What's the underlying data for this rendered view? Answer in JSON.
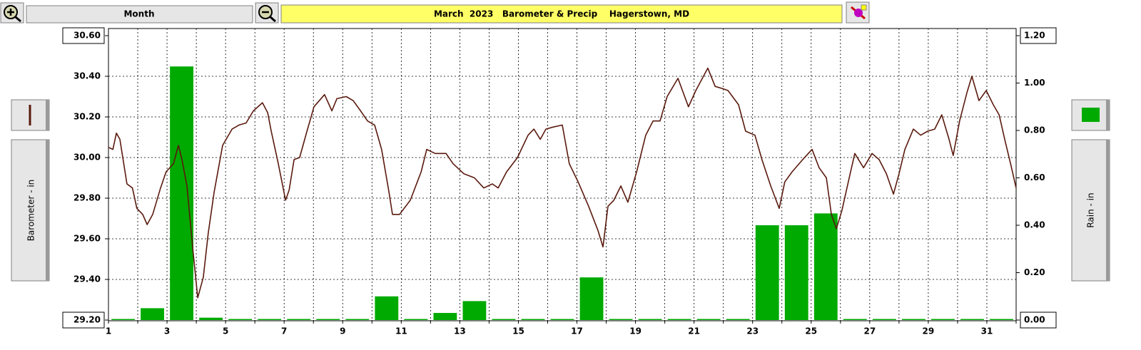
{
  "toolbar": {
    "period": "Month"
  },
  "chart_data": {
    "type": "combo",
    "title": "March  2023   Barometer & Precip    Hagerstown, MD",
    "ylabel": "Barometer - in",
    "y2label": "Rain - in",
    "xlim": [
      1,
      32
    ],
    "xticks": [
      1,
      3,
      5,
      7,
      9,
      11,
      13,
      15,
      17,
      19,
      21,
      23,
      25,
      27,
      29,
      31
    ],
    "xminor_ticks": [
      2,
      4,
      6,
      8,
      10,
      12,
      14,
      16,
      18,
      20,
      22,
      24,
      26,
      28,
      30,
      32
    ],
    "ylim": [
      29.2,
      30.6
    ],
    "yticks": [
      {
        "value": 29.2,
        "label": "29.20"
      },
      {
        "value": 29.4,
        "label": "29.40"
      },
      {
        "value": 29.6,
        "label": "29.60"
      },
      {
        "value": 29.8,
        "label": "29.80"
      },
      {
        "value": 30.0,
        "label": "30.00"
      },
      {
        "value": 30.2,
        "label": "30.20"
      },
      {
        "value": 30.4,
        "label": "30.40"
      },
      {
        "value": 30.6,
        "label": "30.60"
      }
    ],
    "y2lim": [
      0,
      1.2
    ],
    "y2ticks": [
      {
        "value": 0,
        "label": "0.00"
      },
      {
        "value": 0.2,
        "label": "0.20"
      },
      {
        "value": 0.4,
        "label": "0.40"
      },
      {
        "value": 0.6,
        "label": "0.60"
      },
      {
        "value": 0.8,
        "label": "0.80"
      },
      {
        "value": 1.0,
        "label": "1.00"
      },
      {
        "value": 1.2,
        "label": "1.20"
      }
    ],
    "grid": true,
    "series": [
      {
        "type": "line",
        "color": "#5a1a0e",
        "axis": "y",
        "x": [
          1.0,
          1.15,
          1.27,
          1.39,
          1.63,
          1.82,
          1.97,
          2.17,
          2.32,
          2.51,
          2.78,
          2.97,
          3.22,
          3.39,
          3.51,
          3.68,
          3.88,
          4.05,
          4.24,
          4.41,
          4.61,
          4.9,
          5.22,
          5.46,
          5.7,
          5.95,
          6.26,
          6.44,
          6.56,
          6.8,
          7.05,
          7.17,
          7.34,
          7.53,
          7.78,
          8.02,
          8.38,
          8.63,
          8.8,
          9.12,
          9.36,
          9.61,
          9.85,
          10.09,
          10.33,
          10.58,
          10.7,
          10.94,
          11.31,
          11.68,
          11.87,
          12.16,
          12.53,
          12.77,
          13.14,
          13.5,
          13.82,
          14.11,
          14.31,
          14.6,
          14.97,
          15.33,
          15.53,
          15.75,
          15.94,
          16.18,
          16.5,
          16.74,
          17.04,
          17.4,
          17.72,
          17.89,
          18.06,
          18.26,
          18.5,
          18.74,
          19.04,
          19.35,
          19.6,
          19.84,
          20.08,
          20.45,
          20.81,
          21.06,
          21.47,
          21.72,
          21.96,
          22.16,
          22.52,
          22.76,
          23.08,
          23.32,
          23.62,
          23.91,
          24.1,
          24.35,
          24.71,
          25.03,
          25.27,
          25.52,
          25.69,
          25.86,
          26.05,
          26.3,
          26.49,
          26.79,
          27.08,
          27.32,
          27.57,
          27.81,
          28.0,
          28.2,
          28.49,
          28.74,
          28.98,
          29.22,
          29.46,
          29.71,
          29.85,
          30.07,
          30.32,
          30.49,
          30.73,
          30.98,
          31.22,
          31.42,
          31.61,
          31.81,
          32.0
        ],
        "values": [
          30.05,
          30.04,
          30.12,
          30.09,
          29.87,
          29.85,
          29.75,
          29.72,
          29.67,
          29.72,
          29.85,
          29.93,
          29.97,
          30.06,
          29.99,
          29.86,
          29.55,
          29.31,
          29.41,
          29.63,
          29.83,
          30.06,
          30.14,
          30.16,
          30.17,
          30.23,
          30.27,
          30.22,
          30.13,
          29.97,
          29.79,
          29.84,
          29.99,
          30.0,
          30.13,
          30.25,
          30.31,
          30.23,
          30.29,
          30.3,
          30.28,
          30.23,
          30.18,
          30.16,
          30.04,
          29.83,
          29.72,
          29.72,
          29.79,
          29.93,
          30.04,
          30.02,
          30.02,
          29.97,
          29.92,
          29.9,
          29.85,
          29.87,
          29.85,
          29.93,
          30.0,
          30.11,
          30.14,
          30.09,
          30.14,
          30.15,
          30.16,
          29.97,
          29.88,
          29.76,
          29.64,
          29.56,
          29.76,
          29.79,
          29.86,
          29.78,
          29.93,
          30.11,
          30.18,
          30.18,
          30.3,
          30.39,
          30.25,
          30.33,
          30.44,
          30.35,
          30.34,
          30.33,
          30.26,
          30.13,
          30.11,
          29.99,
          29.86,
          29.75,
          29.88,
          29.93,
          29.99,
          30.04,
          29.95,
          29.9,
          29.72,
          29.65,
          29.74,
          29.9,
          30.02,
          29.95,
          30.02,
          29.99,
          29.92,
          29.82,
          29.92,
          30.04,
          30.14,
          30.11,
          30.13,
          30.14,
          30.21,
          30.09,
          30.01,
          30.18,
          30.32,
          30.4,
          30.28,
          30.33,
          30.26,
          30.21,
          30.09,
          29.97,
          29.85
        ]
      },
      {
        "type": "bar",
        "color": "#00aa00",
        "axis": "y2",
        "x": [
          1,
          2,
          3,
          4,
          5,
          6,
          7,
          8,
          9,
          10,
          11,
          12,
          13,
          14,
          15,
          16,
          17,
          18,
          19,
          20,
          21,
          22,
          23,
          24,
          25,
          26,
          27,
          28,
          29,
          30,
          31
        ],
        "values": [
          0,
          0.05,
          1.07,
          0.01,
          0,
          0,
          0,
          0,
          0,
          0.1,
          0,
          0.03,
          0.08,
          0,
          0,
          0,
          0.18,
          0,
          0,
          0,
          0,
          0,
          0.4,
          0.4,
          0.45,
          0,
          0,
          0,
          0,
          0,
          0
        ]
      }
    ]
  }
}
